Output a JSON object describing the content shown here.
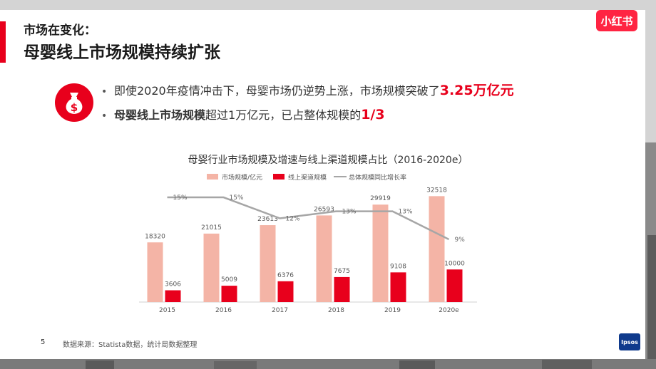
{
  "header": {
    "title_line1": "市场在变化：",
    "title_line2": "母婴线上市场规模持续扩张",
    "brand_logo_text": "小红书",
    "accent_color": "#e8001c"
  },
  "bullets": [
    {
      "lead": "",
      "text": "即使2020年疫情冲击下，母婴市场仍逆势上涨，市场规模突破了",
      "highlight": "3.25万亿元"
    },
    {
      "lead": "母婴线上市场规模",
      "text": "超过1万亿元，已占整体规模的",
      "highlight": "1/3"
    }
  ],
  "icons": {
    "money_bag": "money-bag-icon"
  },
  "chart_data": {
    "type": "bar",
    "title": "母婴行业市场规模及增速与线上渠道规模占比（2016-2020e）",
    "categories": [
      "2015",
      "2016",
      "2017",
      "2018",
      "2019",
      "2020e"
    ],
    "series": [
      {
        "name": "市场规模/亿元",
        "type": "bar",
        "color": "#f4b4a6",
        "values": [
          18320,
          21015,
          23613,
          26593,
          29919,
          32518
        ]
      },
      {
        "name": "线上渠道规模",
        "type": "bar",
        "color": "#e8001c",
        "values": [
          3606,
          5009,
          6376,
          7675,
          9108,
          10000
        ]
      },
      {
        "name": "总体规模同比增长率",
        "type": "line",
        "color": "#a6a6a6",
        "values": [
          15,
          15,
          12,
          13,
          13,
          9
        ],
        "labels": [
          "15%",
          "15%",
          "12%",
          "13%",
          "13%",
          "9%"
        ]
      }
    ],
    "ylim": [
      0,
      35000
    ],
    "grid": false,
    "legend_position": "top"
  },
  "footer": {
    "page_number": "5",
    "source": "数据来源：Statista数据，统计局数据整理",
    "ipsos_logo_text": "Ipsos"
  }
}
